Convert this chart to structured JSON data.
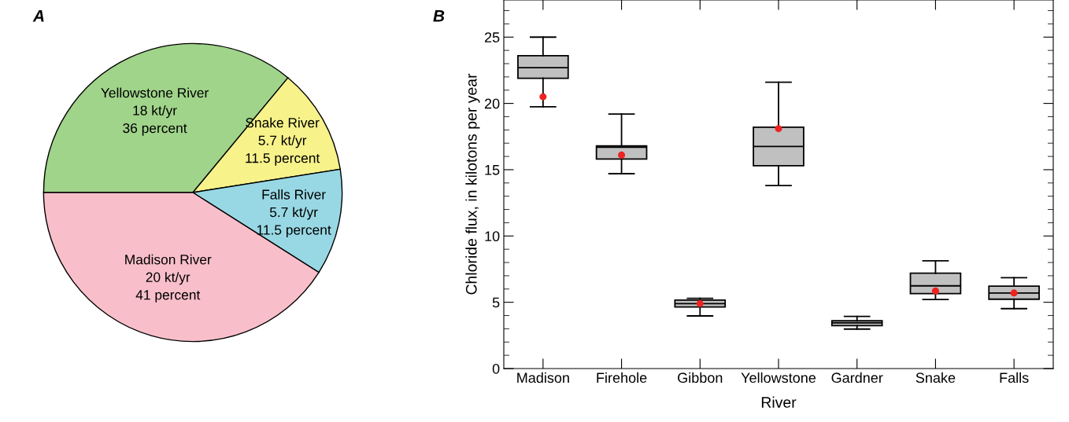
{
  "chart_data": [
    {
      "type": "pie",
      "title": "A",
      "categories": [
        "Yellowstone River",
        "Snake River",
        "Falls River",
        "Madison River"
      ],
      "values": [
        36,
        11.5,
        11.5,
        41
      ],
      "colors": [
        "#a0d48a",
        "#f7f28a",
        "#98d8e4",
        "#f8bfca"
      ],
      "value_labels": [
        "18 kt/yr\n36 percent",
        "5.7 kt/yr\n11.5 percent",
        "5.7 kt/yr\n11.5 percent",
        "20 kt/yr\n41 percent"
      ]
    },
    {
      "type": "box",
      "title": "B",
      "xlabel": "River",
      "ylabel": "Chloride flux, in kilotons per year",
      "categories": [
        "Madison",
        "Firehole",
        "Gibbon",
        "Yellowstone",
        "Gardner",
        "Snake",
        "Falls"
      ],
      "color": "#c0c0c0",
      "ylim": [
        0,
        27.8
      ],
      "yticks": [
        0,
        5,
        10,
        15,
        20,
        25
      ],
      "grid": false,
      "boxes": [
        {
          "low": 19.75,
          "q1": 21.9,
          "median": 22.7,
          "q3": 23.6,
          "high": 25.0,
          "mean": 20.5
        },
        {
          "low": 14.7,
          "q1": 15.8,
          "median": 16.7,
          "q3": 16.8,
          "high": 19.2,
          "mean": 16.1
        },
        {
          "low": 3.97,
          "q1": 4.64,
          "median": 4.9,
          "q3": 5.17,
          "high": 5.3,
          "mean": 4.9
        },
        {
          "low": 13.8,
          "q1": 15.3,
          "median": 16.75,
          "q3": 18.2,
          "high": 21.6,
          "mean": 18.1
        },
        {
          "low": 2.98,
          "q1": 3.24,
          "median": 3.44,
          "q3": 3.6,
          "high": 3.93
        },
        {
          "low": 5.21,
          "q1": 5.65,
          "median": 6.24,
          "q3": 7.19,
          "high": 8.13,
          "mean": 5.85
        },
        {
          "low": 4.52,
          "q1": 5.23,
          "median": 5.7,
          "q3": 6.22,
          "high": 6.85,
          "mean": 5.7
        }
      ]
    }
  ]
}
